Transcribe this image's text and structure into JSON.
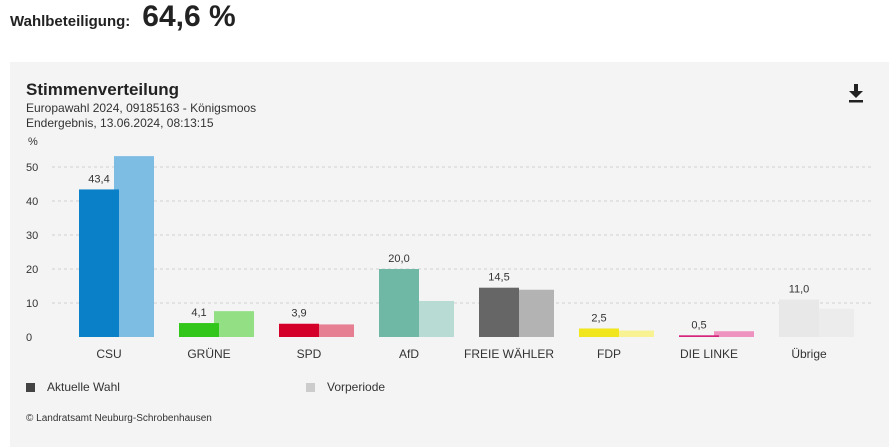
{
  "turnout": {
    "label": "Wahlbeteiligung:",
    "value": "64,6 %"
  },
  "panel": {
    "title": "Stimmenverteilung",
    "subtitle1": "Europawahl 2024, 09185163 - Königsmoos",
    "subtitle2": "Endergebnis, 13.06.2024, 08:13:15",
    "download_icon": "download-icon",
    "copyright": "© Landratsamt Neuburg-Schrobenhausen"
  },
  "legend": {
    "current": "Aktuelle Wahl",
    "previous": "Vorperiode",
    "current_color": "#444444",
    "previous_color": "#cccccc"
  },
  "chart_data": {
    "type": "bar",
    "ylabel": "%",
    "ylim": [
      0,
      55
    ],
    "yticks": [
      0,
      10,
      20,
      30,
      40,
      50
    ],
    "grid": true,
    "categories": [
      "CSU",
      "GRÜNE",
      "SPD",
      "AfD",
      "FREIE WÄHLER",
      "FDP",
      "DIE LINKE",
      "Übrige"
    ],
    "series": [
      {
        "name": "Aktuelle Wahl",
        "values": [
          43.4,
          4.1,
          3.9,
          20.0,
          14.5,
          2.5,
          0.5,
          11.0
        ],
        "labels": [
          "43,4",
          "4,1",
          "3,9",
          "20,0",
          "14,5",
          "2,5",
          "0,5",
          "11,0"
        ],
        "colors": [
          "#0a80c9",
          "#33c61a",
          "#d4002a",
          "#6fb8a6",
          "#666666",
          "#f1e51c",
          "#d6247c",
          "#e8e8e8"
        ]
      },
      {
        "name": "Vorperiode",
        "values": [
          53.2,
          7.6,
          3.7,
          10.6,
          13.9,
          1.9,
          1.7,
          8.3
        ],
        "colors": [
          "#7dbce3",
          "#93df83",
          "#e77f93",
          "#b8dcd3",
          "#b3b3b3",
          "#f8f292",
          "#ee93bf",
          "#ececec"
        ]
      }
    ]
  }
}
